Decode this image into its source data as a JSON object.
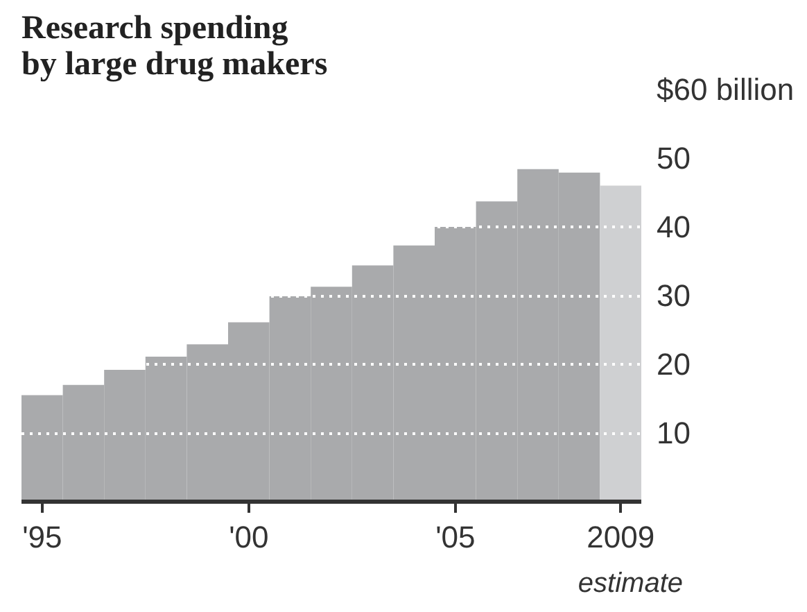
{
  "chart_data": {
    "type": "bar",
    "title": "Research spending\nby large drug makers",
    "x": [
      1995,
      1996,
      1997,
      1998,
      1999,
      2000,
      2001,
      2002,
      2003,
      2004,
      2005,
      2006,
      2007,
      2008,
      2009
    ],
    "values": [
      15.5,
      17.0,
      19.2,
      21.1,
      22.9,
      26.1,
      29.9,
      31.3,
      34.4,
      37.3,
      40.0,
      43.7,
      48.4,
      47.9,
      46.0
    ],
    "colors": [
      "#a9aaac",
      "#a9aaac",
      "#a9aaac",
      "#a9aaac",
      "#a9aaac",
      "#a9aaac",
      "#a9aaac",
      "#a9aaac",
      "#a9aaac",
      "#a9aaac",
      "#a9aaac",
      "#a9aaac",
      "#a9aaac",
      "#a9aaac",
      "#cfd0d2"
    ],
    "xlim": [
      1994.5,
      2009.5
    ],
    "xticks": [
      {
        "value": 1995,
        "label": "'95"
      },
      {
        "value": 2000,
        "label": "'00"
      },
      {
        "value": 2005,
        "label": "'05"
      },
      2009
    ],
    "ylim": [
      0,
      60
    ],
    "yticks": [
      10,
      20,
      30,
      40,
      50,
      {
        "value": 60,
        "label": "$60 billion"
      }
    ],
    "grid": "y",
    "annotations": [
      "estimate"
    ]
  }
}
